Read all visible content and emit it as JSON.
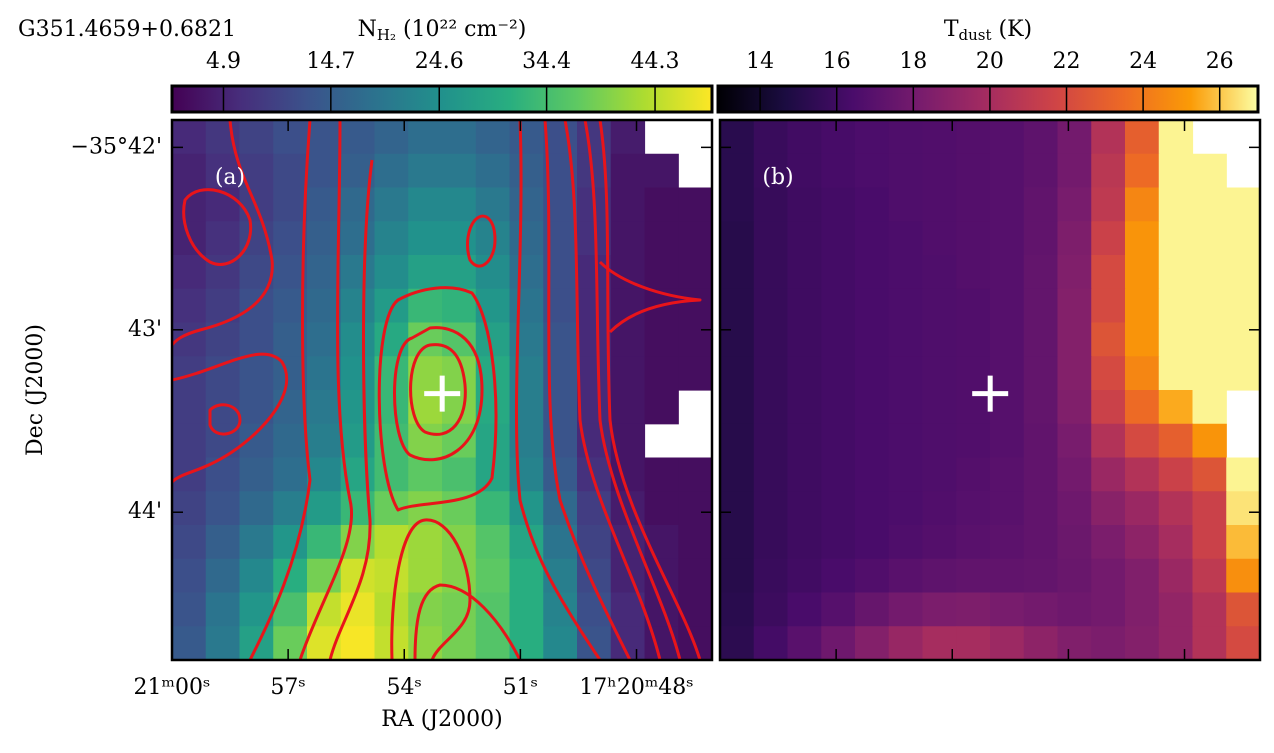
{
  "chart_data": [
    {
      "type": "heatmap",
      "title": "G351.4659+0.6821",
      "panel_label": "(a)",
      "colormap": "viridis",
      "colorbar": {
        "label": {
          "base": "N",
          "sub": "H₂",
          "rest": " (10²² cm⁻²)"
        },
        "lim": [
          0.2,
          49.5
        ],
        "ticks": [
          4.9,
          14.7,
          24.6,
          34.4,
          44.3
        ]
      },
      "xlabel": "RA (J2000)",
      "ylabel": "Dec (J2000)",
      "xlim": [
        60,
        46.05
      ],
      "xticks": [
        {
          "value": 60,
          "label": "21ᵐ00ˢ"
        },
        {
          "value": 57,
          "label": "57ˢ"
        },
        {
          "value": 54,
          "label": "54ˢ"
        },
        {
          "value": 51,
          "label": "51ˢ"
        },
        {
          "value": 48,
          "label": "17ʰ20ᵐ48ˢ"
        }
      ],
      "ylim": [
        44.81,
        41.85
      ],
      "yticks": [
        {
          "value": 42,
          "label": "−35°42'"
        },
        {
          "value": 43,
          "label": "43'"
        },
        {
          "value": 44,
          "label": "44'"
        }
      ],
      "marker": {
        "x": 53.02,
        "y": 43.35,
        "color": "#ffffff"
      },
      "z": [
        [
          6,
          8,
          10,
          12,
          13,
          14,
          16,
          18,
          18,
          16,
          14,
          12,
          8,
          4,
          null,
          null
        ],
        [
          5,
          7,
          9,
          11,
          13,
          15,
          18,
          20,
          20,
          18,
          15,
          12,
          8,
          3,
          3,
          null
        ],
        [
          5,
          6,
          9,
          11,
          14,
          17,
          20,
          23,
          23,
          20,
          16,
          12,
          7,
          3,
          2,
          2
        ],
        [
          5,
          7,
          10,
          12,
          15,
          18,
          22,
          25,
          25,
          22,
          17,
          12,
          7,
          3,
          2,
          2
        ],
        [
          6,
          8,
          11,
          13,
          16,
          20,
          24,
          28,
          28,
          24,
          18,
          12,
          6,
          3,
          2,
          2
        ],
        [
          7,
          9,
          12,
          14,
          17,
          22,
          27,
          33,
          32,
          26,
          19,
          12,
          6,
          3,
          2,
          2
        ],
        [
          8,
          10,
          12,
          15,
          18,
          24,
          30,
          38,
          36,
          28,
          20,
          13,
          6,
          3,
          2,
          2
        ],
        [
          9,
          11,
          13,
          15,
          19,
          25,
          33,
          41,
          40,
          30,
          21,
          13,
          6,
          3,
          2,
          2
        ],
        [
          9,
          11,
          13,
          16,
          20,
          26,
          33,
          42,
          40,
          30,
          21,
          13,
          6,
          3,
          2,
          null
        ],
        [
          9,
          11,
          14,
          17,
          21,
          27,
          34,
          40,
          38,
          29,
          21,
          13,
          6,
          3,
          null,
          null
        ],
        [
          9,
          12,
          15,
          18,
          23,
          29,
          34,
          37,
          35,
          29,
          22,
          14,
          7,
          3,
          2,
          2
        ],
        [
          10,
          13,
          17,
          21,
          27,
          33,
          38,
          40,
          38,
          33,
          26,
          17,
          9,
          4,
          2,
          2
        ],
        [
          11,
          15,
          20,
          26,
          33,
          40,
          44,
          42,
          40,
          36,
          29,
          19,
          10,
          5,
          3,
          2
        ],
        [
          12,
          17,
          23,
          31,
          39,
          46,
          45,
          42,
          40,
          37,
          31,
          21,
          11,
          5,
          3,
          2
        ],
        [
          13,
          19,
          26,
          35,
          45,
          48,
          44,
          40,
          39,
          36,
          31,
          22,
          12,
          6,
          3,
          2
        ],
        [
          14,
          20,
          28,
          38,
          47,
          49,
          45,
          41,
          39,
          36,
          31,
          23,
          13,
          6,
          3,
          2
        ]
      ]
    },
    {
      "type": "heatmap",
      "panel_label": "(b)",
      "colormap": "inferno",
      "colorbar": {
        "label": {
          "base": "T",
          "sub": "dust",
          "rest": " (K)"
        },
        "lim": [
          12.9,
          27.0
        ],
        "ticks": [
          14,
          16,
          18,
          20,
          22,
          24,
          26
        ]
      },
      "xlim": [
        60,
        46.05
      ],
      "xticks": [
        60,
        57,
        54,
        51,
        48
      ],
      "ylim": [
        44.81,
        41.85
      ],
      "yticks": [
        42,
        43,
        44
      ],
      "marker": {
        "x": 53.02,
        "y": 43.35,
        "color": "#ffffff"
      },
      "z": [
        [
          15.2,
          15.8,
          16.1,
          16.3,
          16.5,
          16.6,
          16.7,
          16.8,
          16.9,
          17.2,
          18.0,
          20.5,
          23.0,
          26.8,
          null,
          null
        ],
        [
          15.2,
          15.8,
          16.1,
          16.3,
          16.5,
          16.6,
          16.7,
          16.8,
          16.9,
          17.2,
          18.0,
          20.8,
          23.5,
          26.8,
          26.8,
          null
        ],
        [
          15.2,
          15.7,
          16.0,
          16.2,
          16.4,
          16.6,
          16.7,
          16.8,
          16.9,
          17.3,
          18.2,
          21.0,
          24.5,
          26.8,
          26.8,
          26.8
        ],
        [
          15.1,
          15.7,
          16.0,
          16.2,
          16.4,
          16.5,
          16.7,
          16.8,
          16.9,
          17.3,
          18.4,
          21.5,
          25.0,
          26.8,
          26.8,
          26.8
        ],
        [
          15.1,
          15.7,
          16.0,
          16.2,
          16.4,
          16.5,
          16.6,
          16.8,
          16.9,
          17.4,
          18.5,
          22.0,
          25.0,
          26.8,
          26.8,
          26.8
        ],
        [
          15.1,
          15.7,
          16.0,
          16.2,
          16.4,
          16.5,
          16.6,
          16.7,
          16.9,
          17.4,
          18.6,
          22.0,
          25.0,
          26.8,
          26.8,
          26.8
        ],
        [
          15.1,
          15.7,
          16.0,
          16.2,
          16.4,
          16.5,
          16.6,
          16.7,
          16.9,
          17.4,
          18.6,
          22.5,
          25.0,
          26.8,
          26.8,
          26.8
        ],
        [
          15.1,
          15.7,
          16.0,
          16.2,
          16.4,
          16.5,
          16.6,
          16.7,
          16.9,
          17.4,
          18.6,
          22.0,
          24.5,
          26.8,
          26.8,
          26.8
        ],
        [
          15.1,
          15.7,
          16.0,
          16.2,
          16.4,
          16.5,
          16.6,
          16.7,
          16.9,
          17.4,
          18.5,
          21.5,
          23.5,
          25.5,
          26.8,
          null
        ],
        [
          15.1,
          15.7,
          16.0,
          16.2,
          16.4,
          16.5,
          16.6,
          16.7,
          16.9,
          17.3,
          18.2,
          20.5,
          22.0,
          23.0,
          25.0,
          null
        ],
        [
          15.1,
          15.7,
          16.0,
          16.2,
          16.4,
          16.5,
          16.6,
          16.8,
          17.0,
          17.3,
          18.0,
          19.5,
          20.5,
          21.5,
          22.5,
          26.8
        ],
        [
          15.1,
          15.7,
          16.0,
          16.2,
          16.4,
          16.5,
          16.7,
          16.9,
          17.0,
          17.3,
          17.8,
          18.8,
          19.5,
          20.5,
          21.5,
          26.5
        ],
        [
          15.1,
          15.7,
          16.0,
          16.2,
          16.4,
          16.6,
          16.8,
          17.0,
          17.1,
          17.3,
          17.7,
          18.3,
          19.0,
          20.0,
          21.5,
          25.8
        ],
        [
          15.1,
          15.8,
          16.1,
          16.4,
          16.7,
          17.0,
          17.2,
          17.3,
          17.3,
          17.4,
          17.6,
          18.0,
          18.5,
          19.5,
          21.0,
          24.8
        ],
        [
          15.2,
          15.9,
          16.4,
          16.9,
          17.5,
          18.0,
          18.3,
          18.4,
          18.2,
          18.0,
          17.8,
          18.0,
          18.5,
          19.2,
          20.5,
          22.5
        ],
        [
          15.3,
          16.2,
          17.0,
          17.8,
          18.6,
          19.4,
          20.0,
          20.0,
          19.6,
          19.0,
          18.5,
          18.3,
          18.6,
          19.2,
          20.5,
          22.0
        ]
      ]
    }
  ]
}
